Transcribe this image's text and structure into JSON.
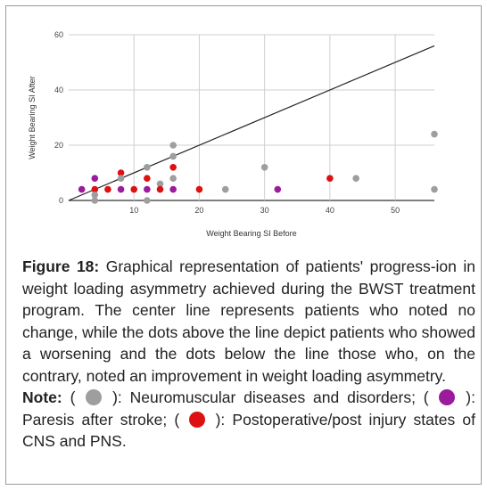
{
  "chart_data": {
    "type": "scatter",
    "xlabel": "Weight Bearing SI Before",
    "ylabel": "Weight Bearing SI After",
    "xlim": [
      0,
      56
    ],
    "ylim": [
      0,
      60
    ],
    "x_ticks": [
      10,
      20,
      30,
      40,
      50
    ],
    "y_ticks": [
      0,
      20,
      40,
      60
    ],
    "reference_line": {
      "x": [
        0,
        56
      ],
      "y": [
        0,
        56
      ]
    },
    "grid": "horizontal",
    "colors": {
      "neuromuscular": "#9e9e9e",
      "paresis": "#9c1a9c",
      "postoperative": "#dd1111"
    },
    "points": [
      {
        "x": 2,
        "y": 4,
        "group": "paresis"
      },
      {
        "x": 4,
        "y": 8,
        "group": "paresis"
      },
      {
        "x": 4,
        "y": 4,
        "group": "postoperative"
      },
      {
        "x": 4,
        "y": 2,
        "group": "neuromuscular"
      },
      {
        "x": 4,
        "y": 0,
        "group": "neuromuscular"
      },
      {
        "x": 6,
        "y": 4,
        "group": "postoperative"
      },
      {
        "x": 8,
        "y": 10,
        "group": "postoperative"
      },
      {
        "x": 8,
        "y": 8,
        "group": "neuromuscular"
      },
      {
        "x": 8,
        "y": 4,
        "group": "paresis"
      },
      {
        "x": 10,
        "y": 4,
        "group": "postoperative"
      },
      {
        "x": 12,
        "y": 12,
        "group": "neuromuscular"
      },
      {
        "x": 12,
        "y": 8,
        "group": "postoperative"
      },
      {
        "x": 12,
        "y": 4,
        "group": "paresis"
      },
      {
        "x": 12,
        "y": 0,
        "group": "neuromuscular"
      },
      {
        "x": 14,
        "y": 6,
        "group": "neuromuscular"
      },
      {
        "x": 14,
        "y": 4,
        "group": "postoperative"
      },
      {
        "x": 16,
        "y": 20,
        "group": "neuromuscular"
      },
      {
        "x": 16,
        "y": 16,
        "group": "neuromuscular"
      },
      {
        "x": 16,
        "y": 12,
        "group": "postoperative"
      },
      {
        "x": 16,
        "y": 8,
        "group": "neuromuscular"
      },
      {
        "x": 16,
        "y": 4,
        "group": "paresis"
      },
      {
        "x": 20,
        "y": 4,
        "group": "postoperative"
      },
      {
        "x": 24,
        "y": 4,
        "group": "neuromuscular"
      },
      {
        "x": 30,
        "y": 12,
        "group": "neuromuscular"
      },
      {
        "x": 32,
        "y": 4,
        "group": "paresis"
      },
      {
        "x": 40,
        "y": 8,
        "group": "postoperative"
      },
      {
        "x": 44,
        "y": 8,
        "group": "neuromuscular"
      },
      {
        "x": 56,
        "y": 24,
        "group": "neuromuscular"
      },
      {
        "x": 56,
        "y": 4,
        "group": "neuromuscular"
      }
    ]
  },
  "caption": {
    "label": "Figure 18:",
    "text": " Graphical representation of patients' progress-ion in weight loading asymmetry achieved during the BWST treatment program. The center line represents patients who noted no change, while the dots above the line depict patients who showed a worsening and the dots below the line those who, on the contrary, noted an improvement in weight loading asymmetry.",
    "note_label": "Note:",
    "note_open_1": " ( ",
    "note_close_1": " ): Neuromuscular diseases and disorders; ( ",
    "note_close_2": " ): Paresis after stroke; ( ",
    "note_close_3": " ): Postoperative/post injury states of CNS and PNS."
  }
}
